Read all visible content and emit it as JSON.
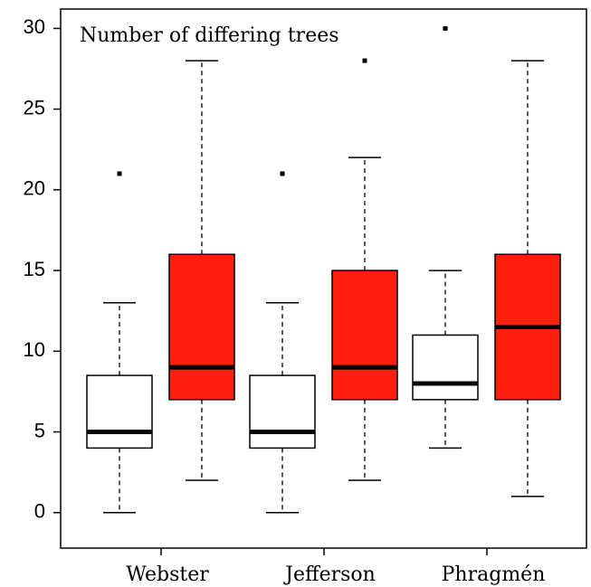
{
  "chart_data": {
    "type": "box",
    "annotation": "Number of differing trees",
    "categories": [
      "Webster",
      "Jefferson",
      "Phragmén"
    ],
    "series": [
      {
        "color": "#ffffff",
        "min": [
          0,
          0,
          4
        ],
        "q1": [
          4,
          4,
          7
        ],
        "median": [
          5,
          5,
          8
        ],
        "q3": [
          8.5,
          8.5,
          11
        ],
        "max": [
          13,
          13,
          15
        ],
        "outliers": [
          [
            21
          ],
          [
            21
          ],
          [
            30
          ]
        ]
      },
      {
        "color": "#ff1f0f",
        "min": [
          2,
          2,
          1
        ],
        "q1": [
          7,
          7,
          7
        ],
        "median": [
          9,
          9,
          11.5
        ],
        "q3": [
          16,
          15,
          16
        ],
        "max": [
          28,
          22,
          28
        ],
        "outliers": [
          [],
          [
            28
          ],
          []
        ]
      }
    ],
    "ylim": [
      -2.2,
      31.2
    ],
    "yticks": [
      0,
      5,
      10,
      15,
      20,
      25,
      30
    ]
  }
}
